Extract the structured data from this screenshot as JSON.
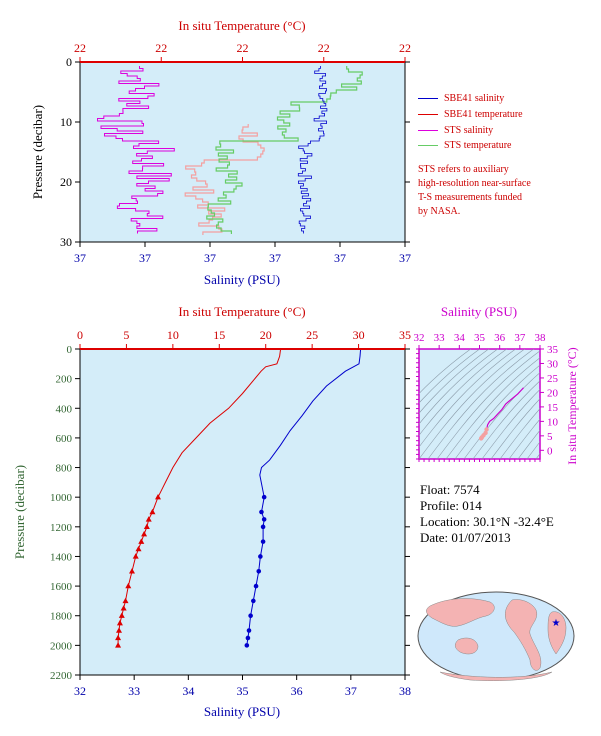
{
  "colors": {
    "plot_bg": "#d4edf9",
    "salinity": "#0000cc",
    "temperature": "#dd0000",
    "sts_salinity": "#dd00dd",
    "sts_temperature": "#66cc66",
    "sts_temp_light": "#f4a0a0",
    "sal_axis": "#0000aa",
    "temp_axis": "#cc0000",
    "pres_axis": "#336633",
    "ts_axis": "#cc00cc"
  },
  "top_panel": {
    "top_axis_title": "In situ Temperature (°C)",
    "bottom_axis_title": "Salinity (PSU)",
    "y_axis_title": "Pressure (decibar)",
    "top_tick_labels": [
      "22",
      "22",
      "22",
      "22",
      "22"
    ],
    "bottom_tick_labels": [
      "37",
      "37",
      "37",
      "37",
      "37",
      "37"
    ],
    "y_tick_labels": [
      "0",
      "10",
      "20",
      "30"
    ]
  },
  "legend": {
    "items": [
      {
        "label": "SBE41 salinity",
        "color": "#0000cc"
      },
      {
        "label": "SBE41 temperature",
        "color": "#dd0000"
      },
      {
        "label": "STS salinity",
        "color": "#dd00dd"
      },
      {
        "label": "STS temperature",
        "color": "#66cc66"
      }
    ],
    "note_lines": [
      "STS refers to auxiliary",
      "high-resolution near-surface",
      "T-S measurements funded",
      "by NASA."
    ]
  },
  "main_panel": {
    "top_axis_title": "In situ Temperature (°C)",
    "bottom_axis_title": "Salinity (PSU)",
    "y_axis_title": "Pressure (decibar)",
    "top_tick_labels": [
      "0",
      "5",
      "10",
      "15",
      "20",
      "25",
      "30",
      "35"
    ],
    "bottom_tick_labels": [
      "32",
      "33",
      "34",
      "35",
      "36",
      "37",
      "38"
    ],
    "y_tick_labels": [
      "0",
      "200",
      "400",
      "600",
      "800",
      "1000",
      "1200",
      "1400",
      "1600",
      "1800",
      "2000",
      "2200"
    ]
  },
  "ts_panel": {
    "top_axis_title": "Salinity (PSU)",
    "right_axis_title": "In situ Temperature (°C)",
    "top_tick_labels": [
      "32",
      "33",
      "34",
      "35",
      "36",
      "37",
      "38"
    ],
    "right_tick_labels": [
      "0",
      "5",
      "10",
      "15",
      "20",
      "25",
      "30",
      "35"
    ]
  },
  "float_info": {
    "float": "Float:  7574",
    "profile": "Profile:  014",
    "location": "Location:  30.1°N  -32.4°E",
    "date": "Date:  01/07/2013"
  },
  "chart_data": [
    {
      "type": "line",
      "title": "",
      "xlabel": "Salinity (PSU)",
      "ylabel": "Pressure (decibar)",
      "ylim": [
        0,
        2200
      ],
      "xlim_salinity": [
        32,
        38
      ],
      "xlim_temperature": [
        0,
        35
      ],
      "series": [
        {
          "name": "SBE41 salinity",
          "x": [
            37.18,
            37.17,
            37.15,
            37.05,
            36.9,
            36.55,
            36.3,
            36.1,
            35.88,
            35.7,
            35.5,
            35.35,
            35.32,
            35.4,
            35.35,
            35.4,
            35.38,
            35.38,
            35.33,
            35.3,
            35.25,
            35.2,
            35.15,
            35.12,
            35.1,
            35.08
          ],
          "y": [
            0,
            50,
            100,
            120,
            150,
            250,
            350,
            450,
            550,
            650,
            750,
            800,
            850,
            1000,
            1100,
            1150,
            1200,
            1300,
            1400,
            1500,
            1600,
            1700,
            1800,
            1900,
            1950,
            2000
          ]
        },
        {
          "name": "SBE41 temperature",
          "x": [
            21.6,
            21.5,
            21.2,
            20.0,
            19.5,
            17.5,
            16.0,
            14.0,
            12.5,
            11.0,
            10.0,
            9.2,
            8.8,
            8.4,
            7.8,
            7.4,
            7.2,
            6.9,
            6.6,
            6.3,
            6.0,
            5.6,
            5.2,
            4.9,
            4.7,
            4.5,
            4.3,
            4.2,
            4.1,
            4.1
          ],
          "y": [
            0,
            50,
            100,
            120,
            150,
            300,
            400,
            500,
            600,
            700,
            800,
            900,
            950,
            1000,
            1100,
            1150,
            1200,
            1250,
            1300,
            1350,
            1400,
            1500,
            1600,
            1700,
            1750,
            1800,
            1850,
            1900,
            1950,
            2000
          ]
        }
      ]
    },
    {
      "type": "scatter",
      "xlabel": "Salinity (PSU)",
      "ylabel": "In situ Temperature (°C)",
      "xlim": [
        32,
        38
      ],
      "ylim": [
        -3,
        35
      ],
      "series": [
        {
          "name": "T-S profile",
          "x": [
            35.08,
            35.12,
            35.2,
            35.3,
            35.35,
            35.4,
            35.5,
            35.7,
            35.9,
            36.1,
            36.3,
            36.55,
            36.9,
            37.1,
            37.18
          ],
          "y": [
            4.1,
            4.5,
            5.2,
            6.0,
            7.2,
            8.8,
            10.0,
            11.0,
            12.5,
            14.0,
            16.0,
            17.5,
            19.5,
            21.0,
            21.6
          ]
        }
      ]
    }
  ]
}
